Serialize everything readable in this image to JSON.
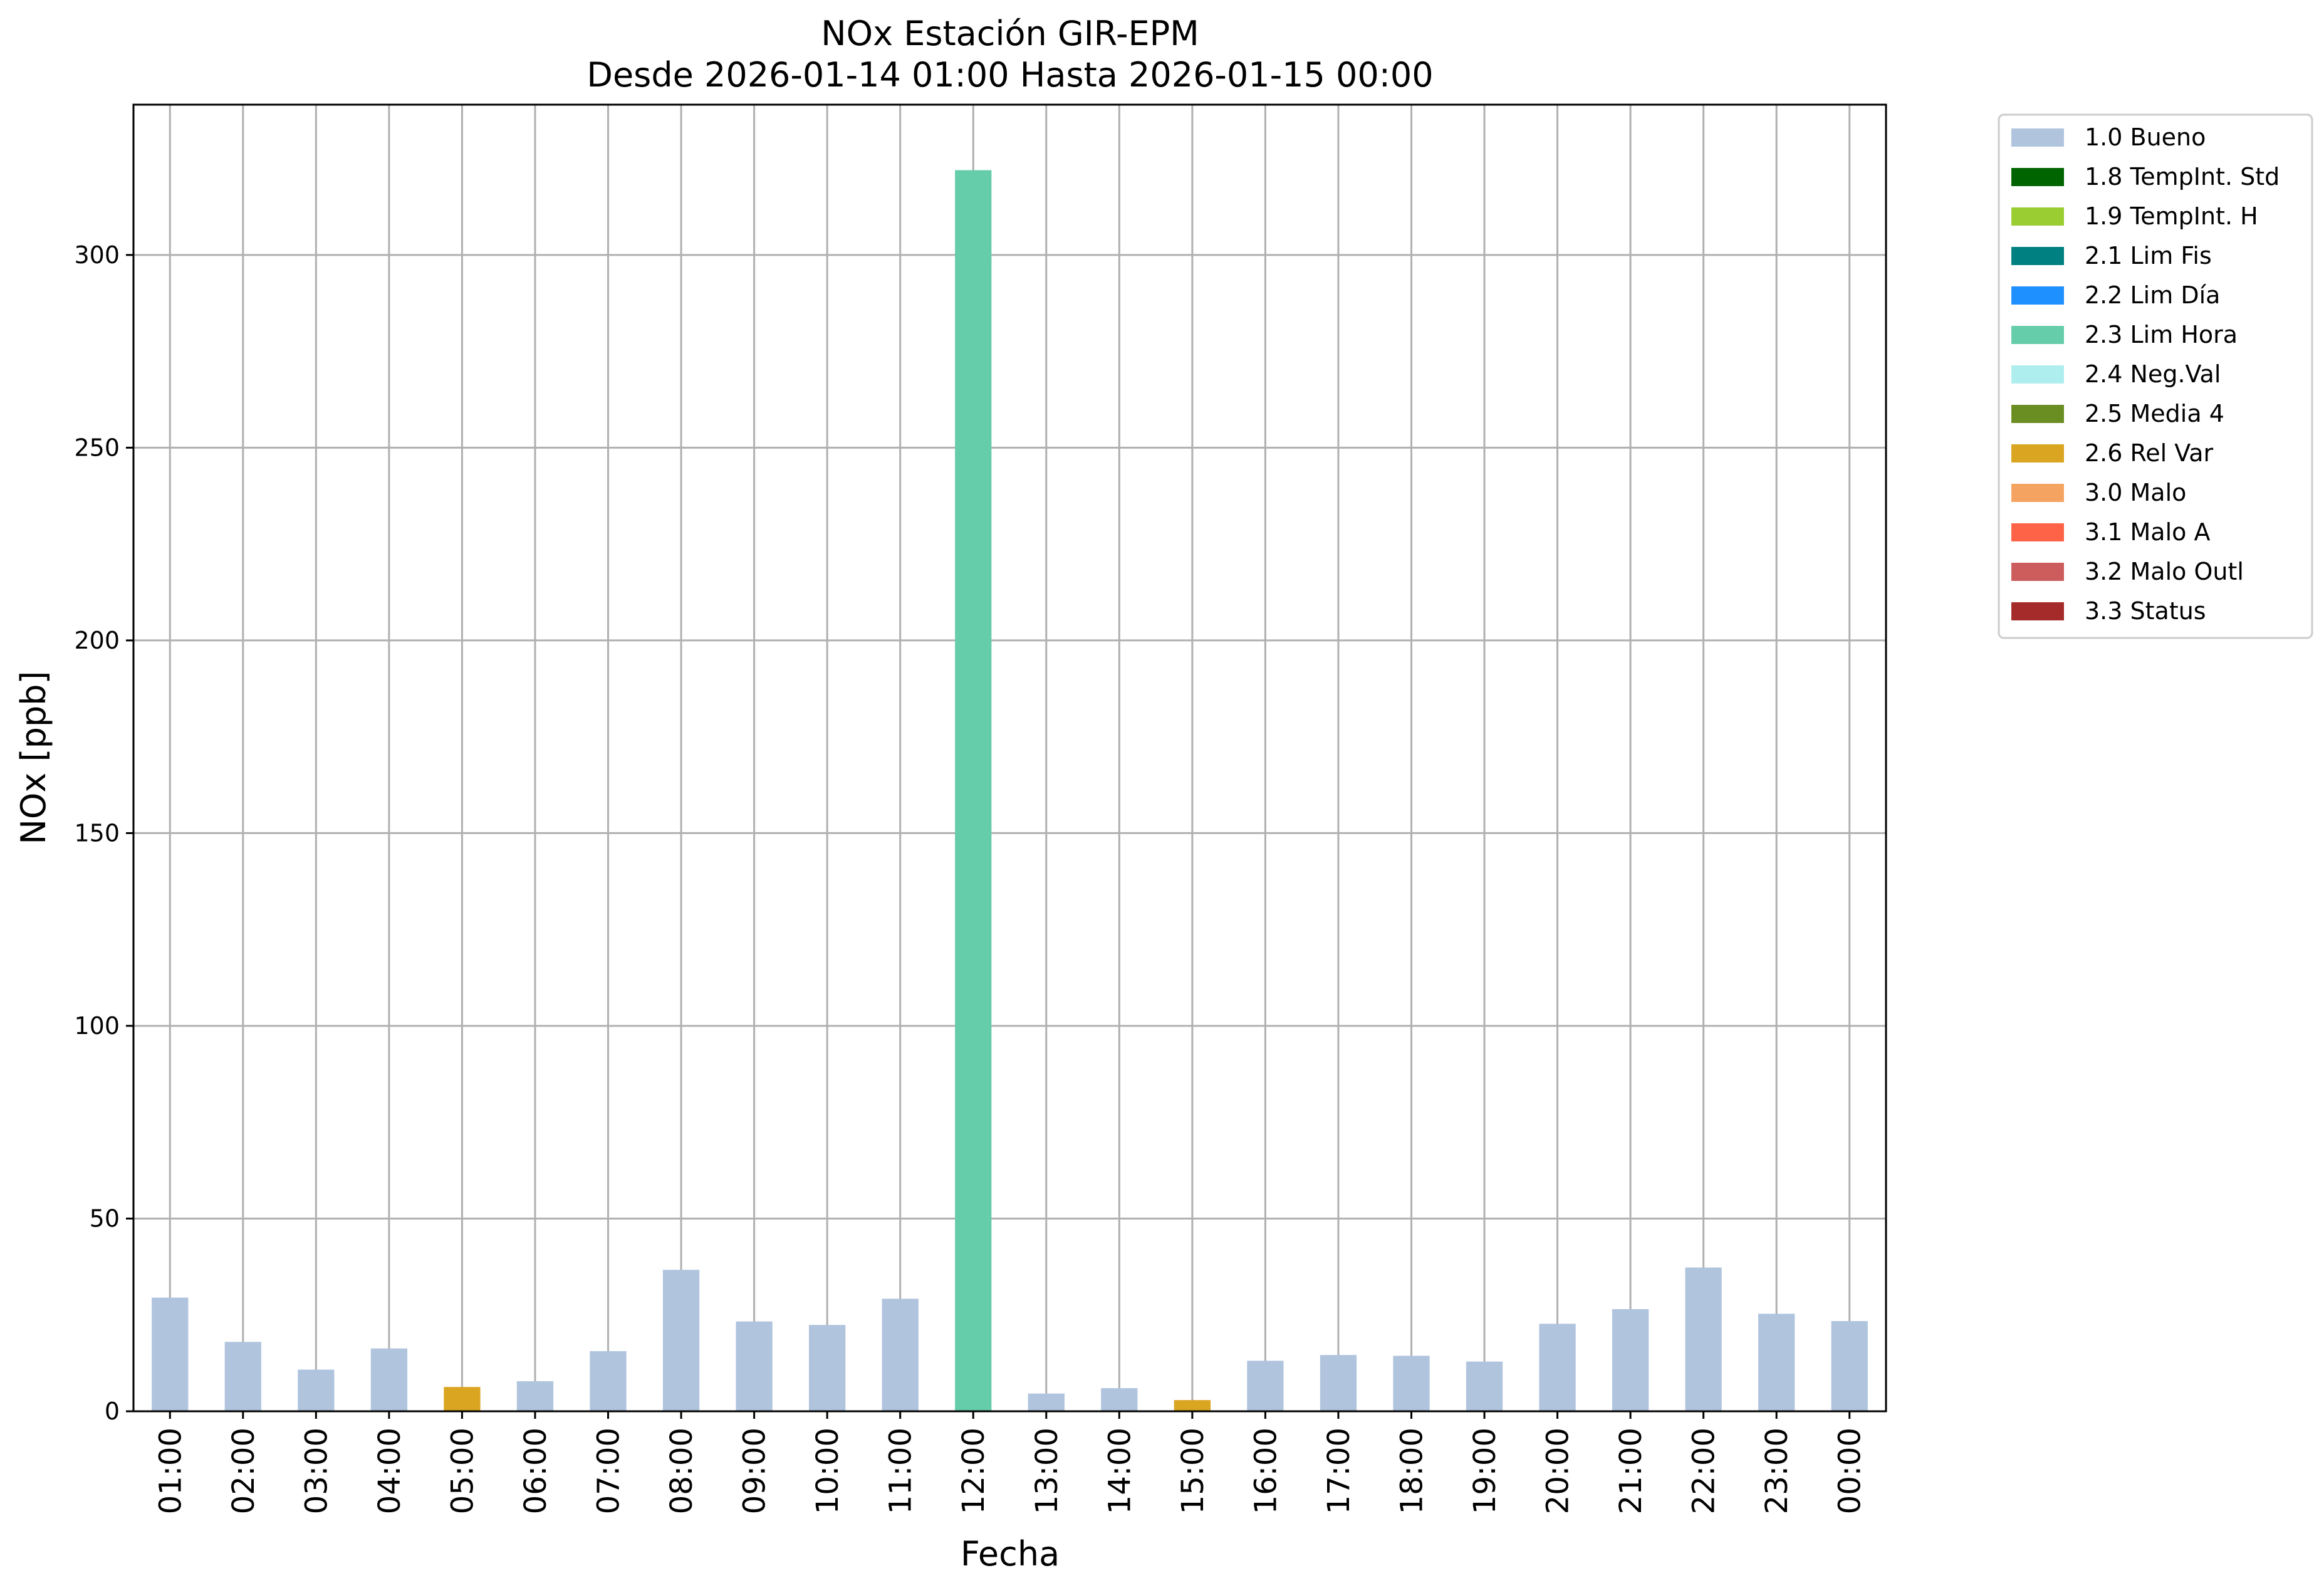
{
  "chart_data": {
    "type": "bar",
    "title": "NOx Estación GIR-EPM",
    "subtitle": "Desde 2026-01-14 01:00 Hasta 2026-01-15 00:00",
    "xlabel": "Fecha",
    "ylabel": "NOx [ppb]",
    "ylim": [
      0,
      339
    ],
    "yticks": [
      0,
      50,
      100,
      150,
      200,
      250,
      300
    ],
    "grid": true,
    "legend_position": "outside-top-right",
    "categories": [
      "01:00",
      "02:00",
      "03:00",
      "04:00",
      "05:00",
      "06:00",
      "07:00",
      "08:00",
      "09:00",
      "10:00",
      "11:00",
      "12:00",
      "13:00",
      "14:00",
      "15:00",
      "16:00",
      "17:00",
      "18:00",
      "19:00",
      "20:00",
      "21:00",
      "22:00",
      "23:00",
      "00:00"
    ],
    "values": [
      29.5,
      18,
      10.8,
      16.3,
      6.3,
      7.8,
      15.6,
      36.7,
      23.3,
      22.4,
      29.2,
      322,
      4.6,
      6,
      2.9,
      13.1,
      14.6,
      14.4,
      12.9,
      22.7,
      26.5,
      37.3,
      25.3,
      23.4
    ],
    "flags": [
      "1.0",
      "1.0",
      "1.0",
      "1.0",
      "2.6",
      "1.0",
      "1.0",
      "1.0",
      "1.0",
      "1.0",
      "1.0",
      "2.3",
      "1.0",
      "1.0",
      "2.6",
      "1.0",
      "1.0",
      "1.0",
      "1.0",
      "1.0",
      "1.0",
      "1.0",
      "1.0",
      "1.0"
    ],
    "legend": [
      {
        "code": "1.0",
        "label": "1.0 Bueno",
        "color": "#b0c4de"
      },
      {
        "code": "1.8",
        "label": "1.8 TempInt. Std",
        "color": "#006400"
      },
      {
        "code": "1.9",
        "label": "1.9 TempInt. H",
        "color": "#9acd32"
      },
      {
        "code": "2.1",
        "label": "2.1 Lim Fis",
        "color": "#008080"
      },
      {
        "code": "2.2",
        "label": "2.2 Lim Día",
        "color": "#1e90ff"
      },
      {
        "code": "2.3",
        "label": "2.3 Lim Hora",
        "color": "#66cdaa"
      },
      {
        "code": "2.4",
        "label": "2.4 Neg.Val",
        "color": "#afeeee"
      },
      {
        "code": "2.5",
        "label": "2.5 Media 4",
        "color": "#6b8e23"
      },
      {
        "code": "2.6",
        "label": "2.6 Rel Var",
        "color": "#daa520"
      },
      {
        "code": "3.0",
        "label": "3.0 Malo",
        "color": "#f4a460"
      },
      {
        "code": "3.1",
        "label": "3.1 Malo A",
        "color": "#ff6347"
      },
      {
        "code": "3.2",
        "label": "3.2 Malo Outl",
        "color": "#cd5c5c"
      },
      {
        "code": "3.3",
        "label": "3.3 Status",
        "color": "#a52a2a"
      }
    ]
  }
}
